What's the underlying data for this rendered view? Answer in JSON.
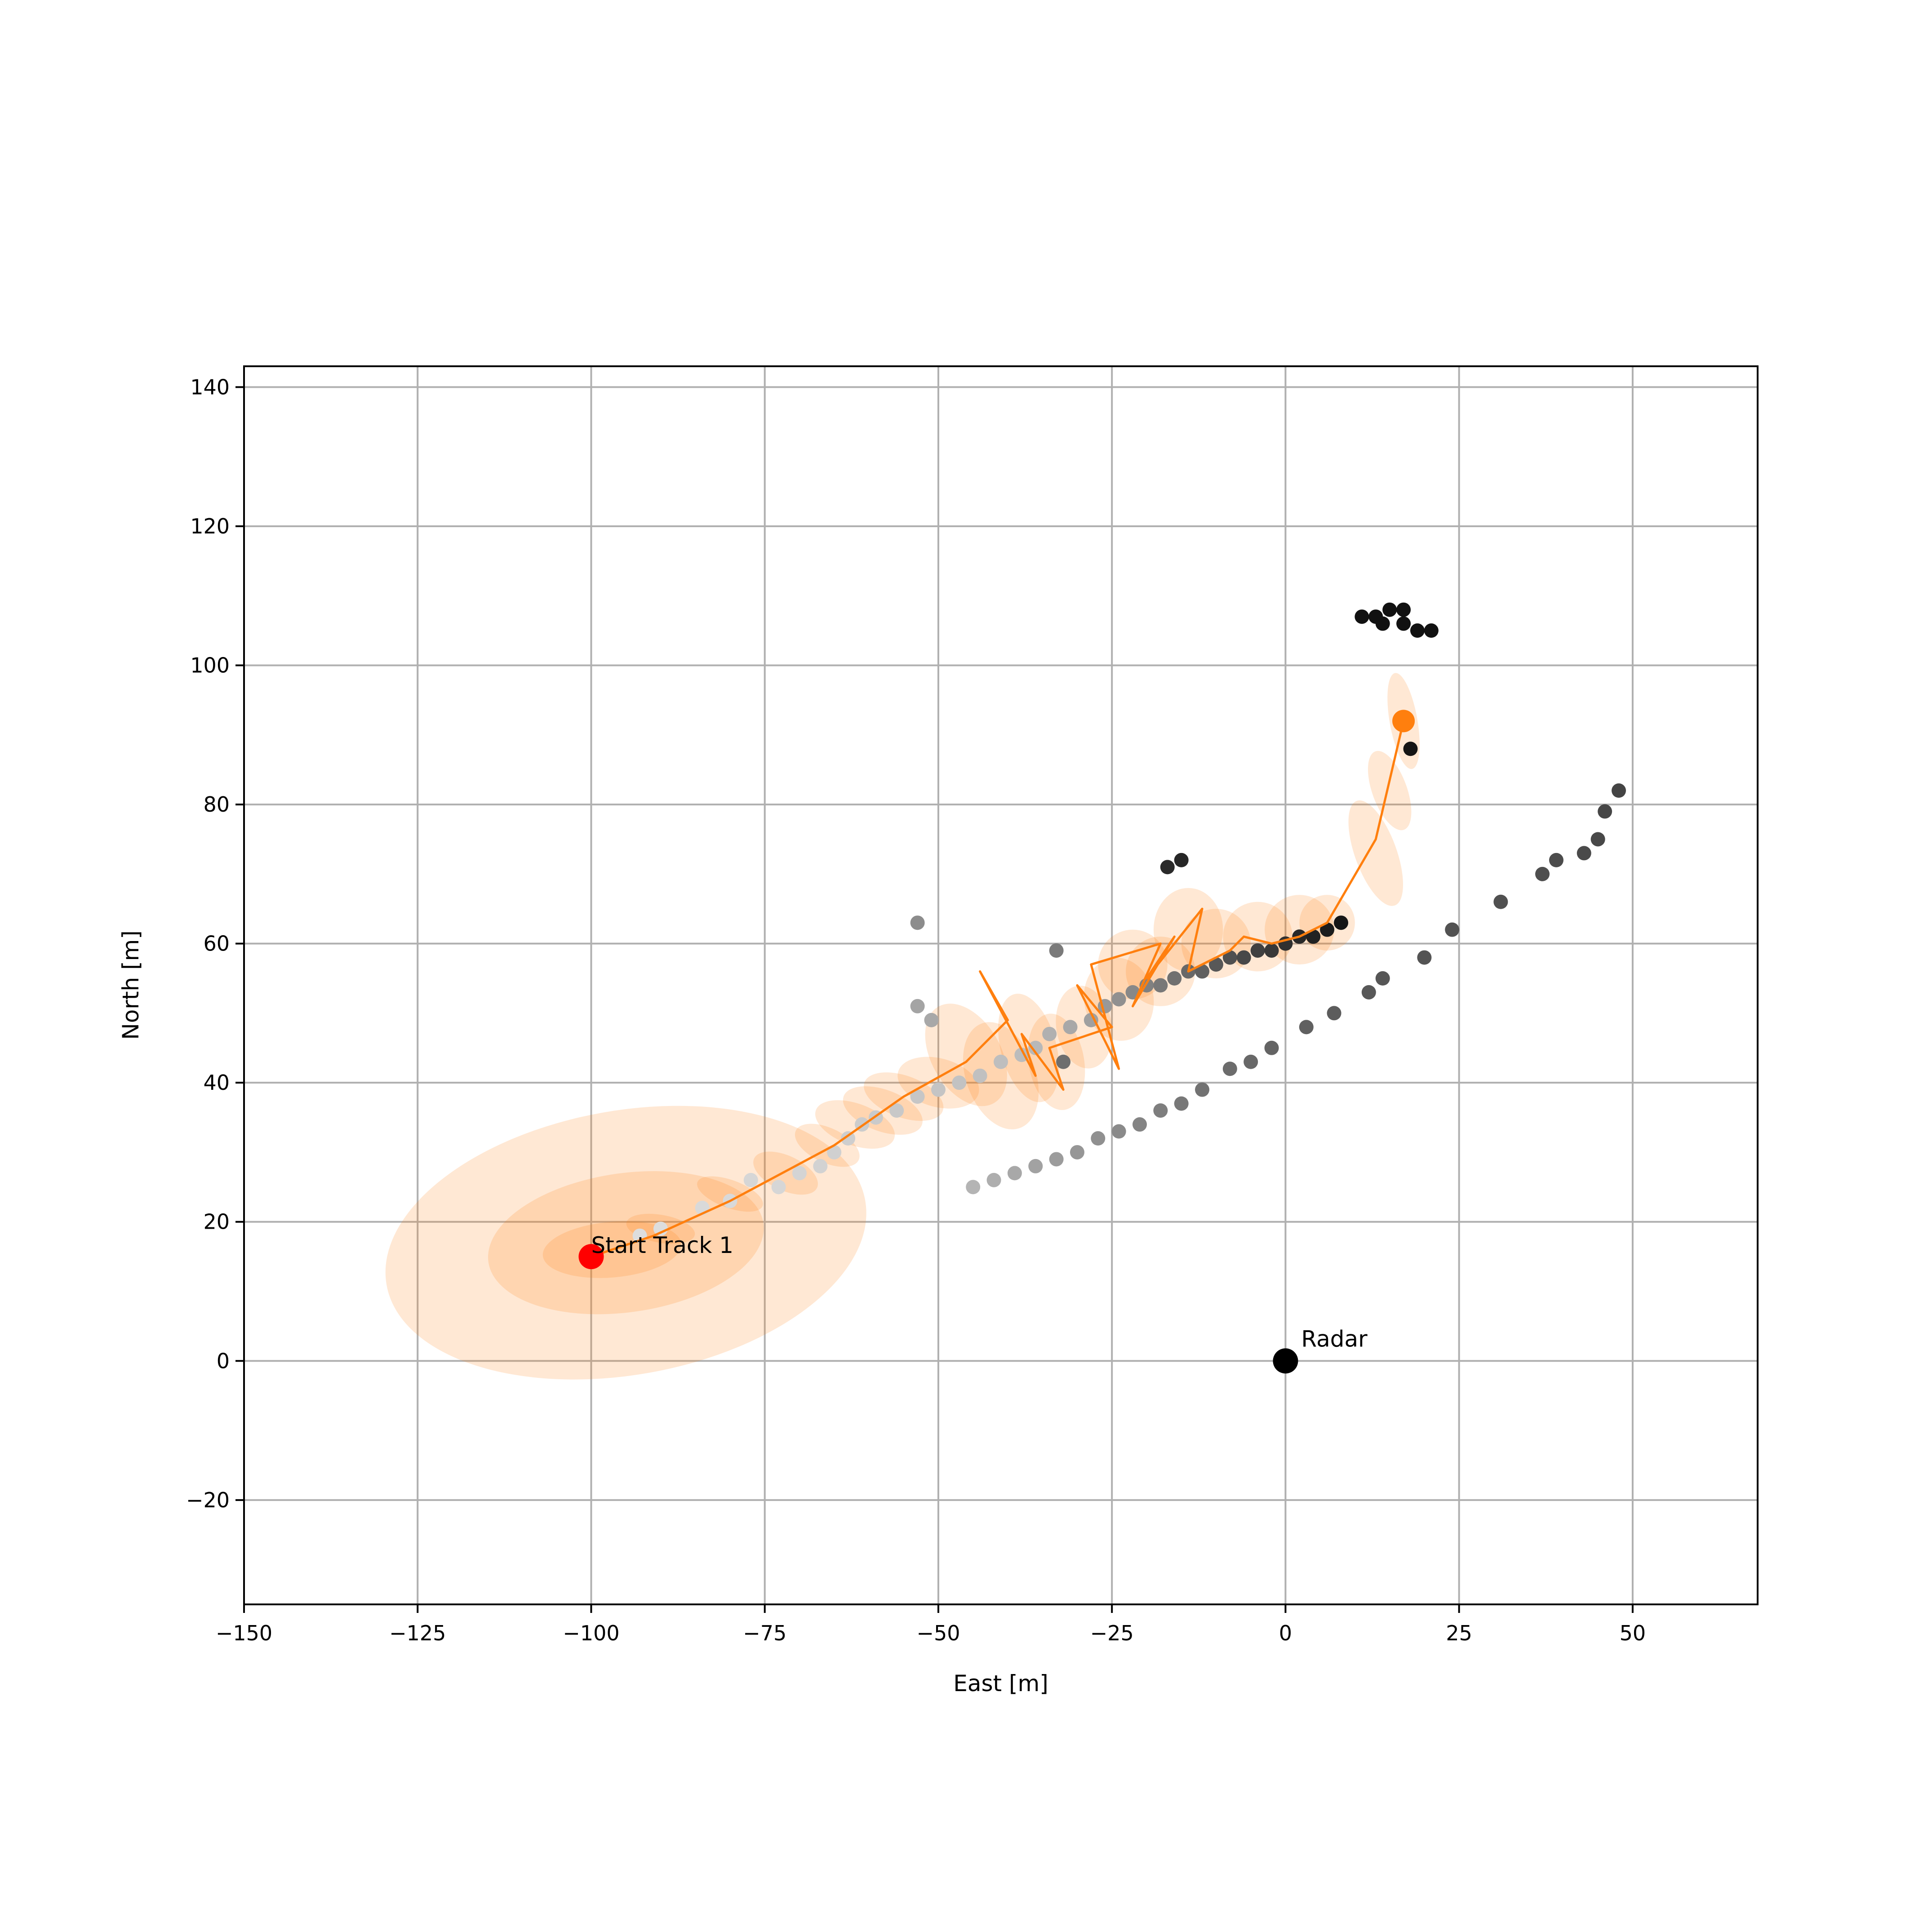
{
  "chart_data": {
    "type": "scatter",
    "title": "",
    "xlabel": "East [m]",
    "ylabel": "North [m]",
    "xlim": [
      -150,
      68
    ],
    "ylim": [
      -35,
      143
    ],
    "xticks": [
      -150,
      -125,
      -100,
      -75,
      -50,
      -25,
      0,
      25,
      50
    ],
    "xtick_labels": [
      "−150",
      "−125",
      "−100",
      "−75",
      "−50",
      "−25",
      "0",
      "25",
      "50"
    ],
    "yticks": [
      -20,
      0,
      20,
      40,
      60,
      80,
      100,
      120,
      140
    ],
    "ytick_labels": [
      "−20",
      "0",
      "20",
      "40",
      "60",
      "80",
      "100",
      "120",
      "140"
    ],
    "grid": true,
    "colors": {
      "track": "#ff7f0e",
      "start": "#ff0000",
      "radar": "#000000",
      "grid": "#b0b0b0"
    },
    "measurements": [
      {
        "x": -93,
        "y": 18,
        "c": "#dddddd"
      },
      {
        "x": -90,
        "y": 19,
        "c": "#dddddd"
      },
      {
        "x": -84,
        "y": 22,
        "c": "#d9d9d9"
      },
      {
        "x": -80,
        "y": 23,
        "c": "#d9d9d9"
      },
      {
        "x": -77,
        "y": 26,
        "c": "#d6d6d6"
      },
      {
        "x": -73,
        "y": 25,
        "c": "#d6d6d6"
      },
      {
        "x": -70,
        "y": 27,
        "c": "#d4d4d4"
      },
      {
        "x": -67,
        "y": 28,
        "c": "#d2d2d2"
      },
      {
        "x": -65,
        "y": 30,
        "c": "#d0d0d0"
      },
      {
        "x": -63,
        "y": 32,
        "c": "#cecece"
      },
      {
        "x": -61,
        "y": 34,
        "c": "#cccccc"
      },
      {
        "x": -59,
        "y": 35,
        "c": "#cacaca"
      },
      {
        "x": -56,
        "y": 36,
        "c": "#c8c8c8"
      },
      {
        "x": -53,
        "y": 38,
        "c": "#c6c6c6"
      },
      {
        "x": -50,
        "y": 39,
        "c": "#c4c4c4"
      },
      {
        "x": -47,
        "y": 40,
        "c": "#c2c2c2"
      },
      {
        "x": -44,
        "y": 41,
        "c": "#c0c0c0"
      },
      {
        "x": -41,
        "y": 43,
        "c": "#bebebe"
      },
      {
        "x": -38,
        "y": 44,
        "c": "#bcbcbc"
      },
      {
        "x": -36,
        "y": 45,
        "c": "#b8b8b8"
      },
      {
        "x": -34,
        "y": 47,
        "c": "#b0b0b0"
      },
      {
        "x": -31,
        "y": 48,
        "c": "#a8a8a8"
      },
      {
        "x": -28,
        "y": 49,
        "c": "#a0a0a0"
      },
      {
        "x": -26,
        "y": 51,
        "c": "#989898"
      },
      {
        "x": -24,
        "y": 52,
        "c": "#909090"
      },
      {
        "x": -22,
        "y": 53,
        "c": "#888888"
      },
      {
        "x": -20,
        "y": 54,
        "c": "#808080"
      },
      {
        "x": -18,
        "y": 54,
        "c": "#787878"
      },
      {
        "x": -16,
        "y": 55,
        "c": "#707070"
      },
      {
        "x": -14,
        "y": 56,
        "c": "#686868"
      },
      {
        "x": -12,
        "y": 56,
        "c": "#606060"
      },
      {
        "x": -10,
        "y": 57,
        "c": "#585858"
      },
      {
        "x": -8,
        "y": 58,
        "c": "#505050"
      },
      {
        "x": -6,
        "y": 58,
        "c": "#484848"
      },
      {
        "x": -4,
        "y": 59,
        "c": "#404040"
      },
      {
        "x": -2,
        "y": 59,
        "c": "#383838"
      },
      {
        "x": 0,
        "y": 60,
        "c": "#303030"
      },
      {
        "x": 2,
        "y": 61,
        "c": "#282828"
      },
      {
        "x": 4,
        "y": 61,
        "c": "#222222"
      },
      {
        "x": 6,
        "y": 62,
        "c": "#1c1c1c"
      },
      {
        "x": 8,
        "y": 63,
        "c": "#161616"
      },
      {
        "x": -53,
        "y": 63,
        "c": "#8c8c8c"
      },
      {
        "x": -53,
        "y": 51,
        "c": "#a4a4a4"
      },
      {
        "x": -51,
        "y": 49,
        "c": "#a8a8a8"
      },
      {
        "x": -33,
        "y": 59,
        "c": "#7a7a7a"
      },
      {
        "x": -32,
        "y": 43,
        "c": "#6e6e6e"
      },
      {
        "x": -17,
        "y": 71,
        "c": "#2a2a2a"
      },
      {
        "x": -15,
        "y": 72,
        "c": "#262626"
      },
      {
        "x": 18,
        "y": 88,
        "c": "#141414"
      },
      {
        "x": 11,
        "y": 107,
        "c": "#111111"
      },
      {
        "x": 13,
        "y": 107,
        "c": "#111111"
      },
      {
        "x": 15,
        "y": 108,
        "c": "#111111"
      },
      {
        "x": 17,
        "y": 108,
        "c": "#111111"
      },
      {
        "x": 17,
        "y": 106,
        "c": "#111111"
      },
      {
        "x": 19,
        "y": 105,
        "c": "#111111"
      },
      {
        "x": 21,
        "y": 105,
        "c": "#111111"
      },
      {
        "x": 14,
        "y": 106,
        "c": "#111111"
      },
      {
        "x": -45,
        "y": 25,
        "c": "#b4b4b4"
      },
      {
        "x": -42,
        "y": 26,
        "c": "#aeaeae"
      },
      {
        "x": -39,
        "y": 27,
        "c": "#a8a8a8"
      },
      {
        "x": -36,
        "y": 28,
        "c": "#a2a2a2"
      },
      {
        "x": -33,
        "y": 29,
        "c": "#9c9c9c"
      },
      {
        "x": -30,
        "y": 30,
        "c": "#969696"
      },
      {
        "x": -27,
        "y": 32,
        "c": "#909090"
      },
      {
        "x": -24,
        "y": 33,
        "c": "#8a8a8a"
      },
      {
        "x": -21,
        "y": 34,
        "c": "#848484"
      },
      {
        "x": -18,
        "y": 36,
        "c": "#7e7e7e"
      },
      {
        "x": -15,
        "y": 37,
        "c": "#787878"
      },
      {
        "x": -12,
        "y": 39,
        "c": "#727272"
      },
      {
        "x": -8,
        "y": 42,
        "c": "#6c6c6c"
      },
      {
        "x": -5,
        "y": 43,
        "c": "#686868"
      },
      {
        "x": -2,
        "y": 45,
        "c": "#646464"
      },
      {
        "x": 3,
        "y": 48,
        "c": "#606060"
      },
      {
        "x": 7,
        "y": 50,
        "c": "#5c5c5c"
      },
      {
        "x": 12,
        "y": 53,
        "c": "#585858"
      },
      {
        "x": 14,
        "y": 55,
        "c": "#565656"
      },
      {
        "x": 20,
        "y": 58,
        "c": "#545454"
      },
      {
        "x": 24,
        "y": 62,
        "c": "#525252"
      },
      {
        "x": 31,
        "y": 66,
        "c": "#505050"
      },
      {
        "x": 37,
        "y": 70,
        "c": "#4e4e4e"
      },
      {
        "x": 39,
        "y": 72,
        "c": "#4c4c4c"
      },
      {
        "x": 43,
        "y": 73,
        "c": "#4a4a4a"
      },
      {
        "x": 45,
        "y": 75,
        "c": "#484848"
      },
      {
        "x": 46,
        "y": 79,
        "c": "#464646"
      },
      {
        "x": 48,
        "y": 82,
        "c": "#444444"
      }
    ],
    "track": {
      "x": [
        -100,
        -91,
        -80,
        -65,
        -55,
        -46,
        -40,
        -44,
        -36,
        -38,
        -32,
        -34,
        -25,
        -30,
        -24,
        -28,
        -18,
        -22,
        -16,
        -20,
        -12,
        -14,
        -8,
        -6,
        -2,
        2,
        6,
        13,
        17
      ],
      "y": [
        15,
        18,
        23,
        31,
        38,
        43,
        49,
        56,
        41,
        47,
        39,
        45,
        48,
        54,
        42,
        57,
        60,
        51,
        61,
        55,
        65,
        56,
        59,
        61,
        60,
        61,
        63,
        75,
        92
      ]
    },
    "covariance_ellipses": [
      {
        "cx": -95,
        "cy": 17,
        "rx": 35,
        "ry": 19,
        "angle": -10
      },
      {
        "cx": -95,
        "cy": 17,
        "rx": 20,
        "ry": 10,
        "angle": -8
      },
      {
        "cx": -97,
        "cy": 16,
        "rx": 10,
        "ry": 4,
        "angle": -5
      },
      {
        "cx": -90,
        "cy": 19,
        "rx": 5,
        "ry": 2,
        "angle": 10
      },
      {
        "cx": -80,
        "cy": 24,
        "rx": 5,
        "ry": 2,
        "angle": 20
      },
      {
        "cx": -72,
        "cy": 27,
        "rx": 5,
        "ry": 2.5,
        "angle": 25
      },
      {
        "cx": -66,
        "cy": 31,
        "rx": 5,
        "ry": 2.5,
        "angle": 25
      },
      {
        "cx": -62,
        "cy": 34,
        "rx": 6,
        "ry": 3,
        "angle": 20
      },
      {
        "cx": -58,
        "cy": 36,
        "rx": 6,
        "ry": 3,
        "angle": 20
      },
      {
        "cx": -55,
        "cy": 38,
        "rx": 6,
        "ry": 3,
        "angle": 20
      },
      {
        "cx": -50,
        "cy": 40,
        "rx": 6,
        "ry": 3.5,
        "angle": 15
      },
      {
        "cx": -46,
        "cy": 44,
        "rx": 5,
        "ry": 8,
        "angle": -30
      },
      {
        "cx": -41,
        "cy": 41,
        "rx": 5,
        "ry": 8,
        "angle": -20
      },
      {
        "cx": -37,
        "cy": 45,
        "rx": 4,
        "ry": 8,
        "angle": -15
      },
      {
        "cx": -33,
        "cy": 43,
        "rx": 4,
        "ry": 7,
        "angle": -10
      },
      {
        "cx": -29,
        "cy": 48,
        "rx": 4,
        "ry": 6,
        "angle": -10
      },
      {
        "cx": -24,
        "cy": 52,
        "rx": 5,
        "ry": 6,
        "angle": -10
      },
      {
        "cx": -22,
        "cy": 57,
        "rx": 5,
        "ry": 5,
        "angle": 0
      },
      {
        "cx": -18,
        "cy": 56,
        "rx": 5,
        "ry": 5,
        "angle": 0
      },
      {
        "cx": -14,
        "cy": 62,
        "rx": 5,
        "ry": 6,
        "angle": 0
      },
      {
        "cx": -10,
        "cy": 60,
        "rx": 5,
        "ry": 5,
        "angle": 0
      },
      {
        "cx": -4,
        "cy": 61,
        "rx": 5,
        "ry": 5,
        "angle": 0
      },
      {
        "cx": 2,
        "cy": 62,
        "rx": 5,
        "ry": 5,
        "angle": 0
      },
      {
        "cx": 6,
        "cy": 63,
        "rx": 4,
        "ry": 4,
        "angle": 0
      },
      {
        "cx": 13,
        "cy": 73,
        "rx": 3,
        "ry": 8,
        "angle": -20
      },
      {
        "cx": 15,
        "cy": 82,
        "rx": 2.5,
        "ry": 6,
        "angle": -20
      },
      {
        "cx": 17,
        "cy": 92,
        "rx": 2,
        "ry": 7,
        "angle": -10
      }
    ],
    "start_marker": {
      "x": -100,
      "y": 15,
      "label": "Start Track 1"
    },
    "track_end": {
      "x": 17,
      "y": 92
    },
    "radar_marker": {
      "x": 0,
      "y": 0,
      "label": "Radar"
    }
  }
}
